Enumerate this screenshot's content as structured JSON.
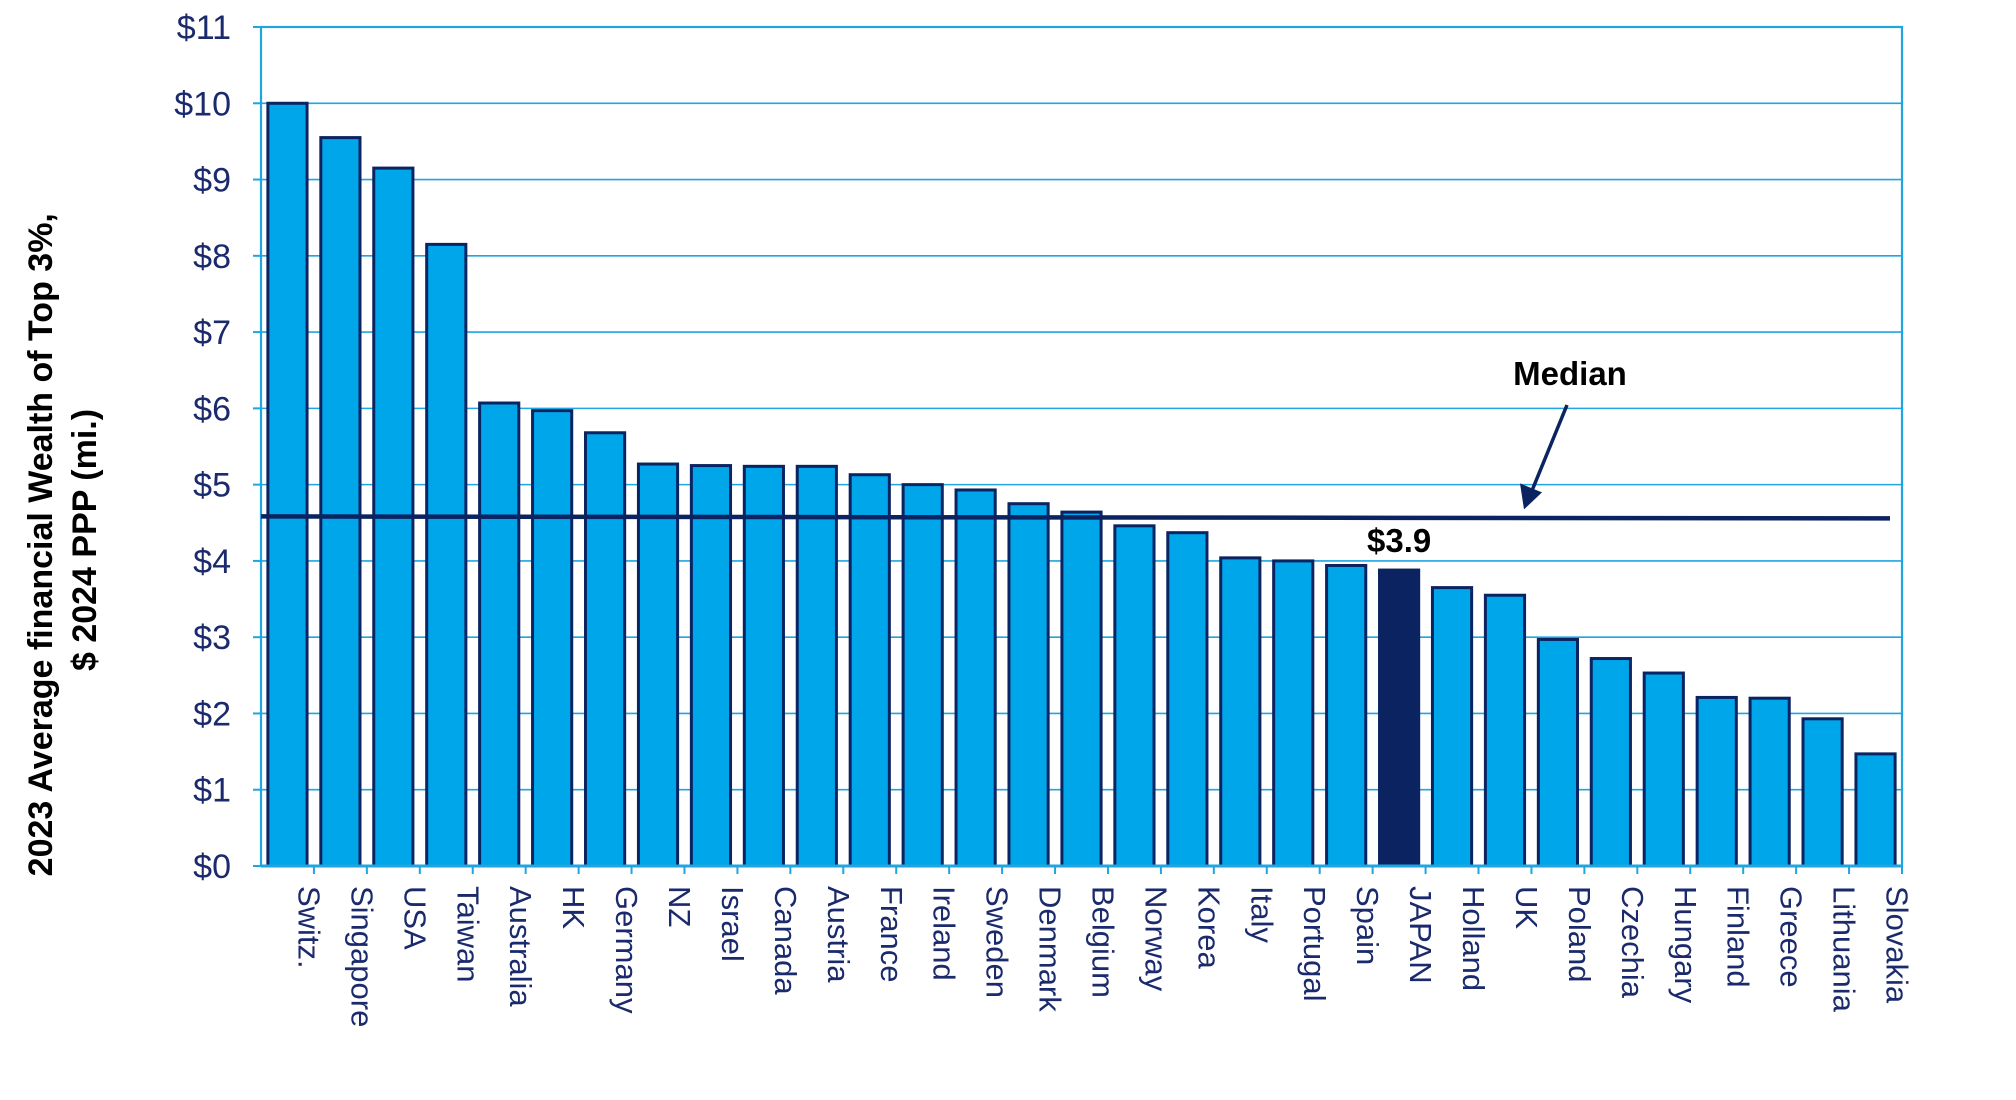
{
  "chart_data": {
    "type": "bar",
    "title": "",
    "ylabel_line1": "2023 Average financial Wealth of Top 3%,",
    "ylabel_line2": "$ 2024 PPP (mi.)",
    "xlabel": "",
    "ylim": [
      0,
      11
    ],
    "yticks": [
      0,
      1,
      2,
      3,
      4,
      5,
      6,
      7,
      8,
      9,
      10,
      11
    ],
    "ytick_labels": [
      "$0",
      "$1",
      "$2",
      "$3",
      "$4",
      "$5",
      "$6",
      "$7",
      "$8",
      "$9",
      "$10",
      "$11"
    ],
    "grid": true,
    "categories": [
      "Switz.",
      "Singapore",
      "USA",
      "Taiwan",
      "Australia",
      "HK",
      "Germany",
      "NZ",
      "Israel",
      "Canada",
      "Austria",
      "France",
      "Ireland",
      "Sweden",
      "Denmark",
      "Belgium",
      "Norway",
      "Korea",
      "Italy",
      "Portugal",
      "Spain",
      "JAPAN",
      "Holland",
      "UK",
      "Poland",
      "Czechia",
      "Hungary",
      "Finland",
      "Greece",
      "Lithuania",
      "Slovakia"
    ],
    "values": [
      10.0,
      9.55,
      9.15,
      8.15,
      6.07,
      5.97,
      5.68,
      5.27,
      5.25,
      5.24,
      5.24,
      5.13,
      5.0,
      4.93,
      4.75,
      4.64,
      4.46,
      4.37,
      4.04,
      4.0,
      3.94,
      3.88,
      3.65,
      3.55,
      2.97,
      2.72,
      2.53,
      2.21,
      2.2,
      1.93,
      1.47
    ],
    "highlight_category": "JAPAN",
    "median": 4.57,
    "median_label": "Median",
    "highlight_label": "$3.9"
  },
  "colors": {
    "bar": "#00a6ea",
    "bar_highlight": "#0b2461",
    "bar_edge": "#0b2461",
    "grid": "#1fa5e0",
    "axis": "#1fa5e0",
    "median_line": "#0b2461",
    "tick_text": "#1a2a6c"
  }
}
